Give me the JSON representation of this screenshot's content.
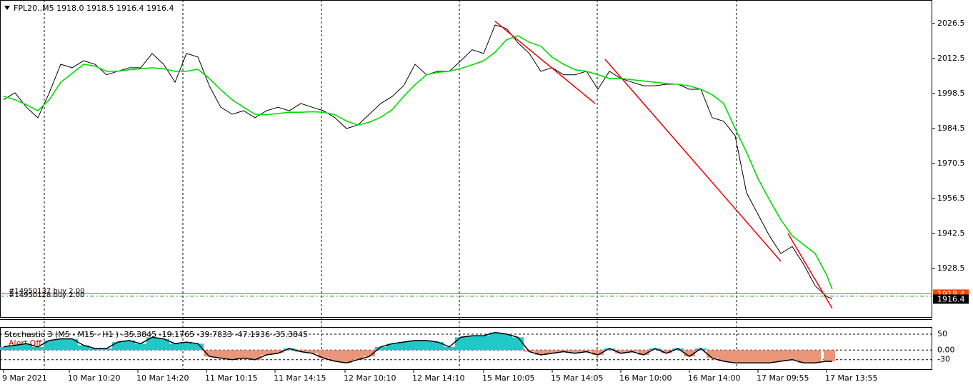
{
  "chart_data": [
    {
      "type": "line",
      "title": "FPL20.,M5  1918.0 1918.5 1916.4 1916.4",
      "x": [
        0,
        8,
        16,
        24,
        32,
        40,
        48,
        56,
        64,
        72,
        80,
        88,
        96,
        104,
        112,
        120,
        128,
        136,
        144,
        152,
        160,
        168,
        176,
        184,
        192,
        200,
        208,
        216,
        224,
        232,
        240,
        248,
        256,
        264,
        272,
        280,
        288,
        296,
        304,
        312,
        320,
        328,
        336,
        344,
        352,
        360,
        368,
        376,
        384,
        392,
        400,
        408,
        416,
        424,
        432,
        440,
        448,
        456,
        464,
        472,
        480,
        488,
        496,
        504,
        512,
        520,
        528,
        536,
        544,
        552,
        560,
        568,
        576,
        580
      ],
      "series": [
        {
          "color": "#000000",
          "values": [
            1996,
            1998.8,
            1993,
            1988.8,
            1998.8,
            2010.2,
            2008.8,
            2011.6,
            2010.2,
            2006,
            2007.4,
            2008.8,
            2008.8,
            2014.5,
            2010.2,
            2003,
            2014.5,
            2013.1,
            2001.6,
            1993,
            1990.2,
            1991.6,
            1988.8,
            1991.6,
            1993,
            1991.6,
            1994.5,
            1993,
            1991.6,
            1988.8,
            1984.5,
            1985.9,
            1990.2,
            1994.5,
            1997.3,
            2001.6,
            2010.2,
            2006,
            2007.4,
            2007.4,
            2011.6,
            2016,
            2014.5,
            2025.9,
            2024.5,
            2018.8,
            2014.5,
            2007.4,
            2008.8,
            2006,
            2006,
            2007.4,
            2000.2,
            2007.4,
            2004.5,
            2003,
            2001.6,
            2001.6,
            2002.2,
            2002.2,
            2000.2,
            2000.2,
            1988.8,
            1987.4,
            1981.6,
            1958.8,
            1950.2,
            1941.6,
            1934.5,
            1937.3,
            1930.1,
            1921.6,
            1917.3,
            1916.4
          ]
        },
        {
          "color": "#00dd00",
          "values": [
            1997.4,
            1996,
            1994,
            1991.6,
            1996,
            2003,
            2006.5,
            2010.2,
            2009.5,
            2007.4,
            2007.4,
            2008,
            2008.4,
            2008.8,
            2008.4,
            2007.4,
            2007.4,
            2008.2,
            2004.5,
            2000,
            1996,
            1993,
            1990.2,
            1990,
            1990.5,
            1991,
            1991,
            1991.2,
            1991,
            1990,
            1987.5,
            1985.9,
            1987,
            1989,
            1992,
            1997.3,
            2002,
            2006,
            2007,
            2007.4,
            2008.5,
            2010,
            2011.6,
            2015,
            2020,
            2021.6,
            2019,
            2017.4,
            2013,
            2010.2,
            2008,
            2007.4,
            2006,
            2004.5,
            2004.5,
            2004,
            2003.5,
            2003,
            2002.5,
            2002.2,
            2001.5,
            2000.2,
            1998,
            1994.5,
            1984.5,
            1975,
            1964.5,
            1956,
            1948,
            1941.6,
            1938,
            1934.5,
            1926,
            1920.2
          ]
        }
      ],
      "trendlines": [
        {
          "x": [
            344,
            414
          ],
          "y": [
            2027.4,
            1994.5
          ]
        },
        {
          "x": [
            421,
            544
          ],
          "y": [
            2012.2,
            1931.4
          ]
        },
        {
          "x": [
            549,
            580
          ],
          "y": [
            1942.5,
            1912.5
          ]
        }
      ],
      "trendline_color": "#ee0000",
      "order_lines": [
        {
          "label": "#14950137 buy 2.00",
          "value": 1918.4,
          "color": "#ff4500"
        },
        {
          "label": "#14950128 buy 2.00",
          "value": 1917.4,
          "color": "#2e8b57"
        }
      ],
      "price_labels": [
        {
          "value": 1918.4,
          "color": "#ff4500"
        },
        {
          "value": 1916.4,
          "color": "#000000"
        }
      ],
      "xlim": [
        -2.5,
        650
      ],
      "xticks": [
        {
          "value": 0,
          "label": "9 Mar 2021"
        },
        {
          "value": 46,
          "label": "10 Mar 10:20"
        },
        {
          "value": 94,
          "label": "10 Mar 14:20"
        },
        {
          "value": 142,
          "label": "11 Mar 10:15"
        },
        {
          "value": 190,
          "label": "11 Mar 14:15"
        },
        {
          "value": 239,
          "label": "12 Mar 10:10"
        },
        {
          "value": 287,
          "label": "12 Mar 14:10"
        },
        {
          "value": 336,
          "label": "15 Mar 10:05"
        },
        {
          "value": 384,
          "label": "15 Mar 14:05"
        },
        {
          "value": 432,
          "label": "16 Mar 10:00"
        },
        {
          "value": 480,
          "label": "16 Mar 14:00"
        },
        {
          "value": 528,
          "label": "17 Mar 09:55"
        },
        {
          "value": 576,
          "label": "17 Mar 13:55"
        }
      ],
      "ylim": [
        1908.8,
        2035.9
      ],
      "yticks": [
        2026.5,
        2012.5,
        1998.5,
        1984.5,
        1970.5,
        1956.5,
        1942.5,
        1928.5
      ]
    },
    {
      "type": "bar",
      "title": "Stochastic 3 (M5 - M15 - H1 ) -35.3845 -19.1765 -39.7833 -47.1936 -35.3845",
      "annotation": "Alert Off",
      "pos_color": "#20c8c8",
      "neg_color": "#e9967a",
      "line_color": "#000000",
      "series": [
        {
          "values": [
            10,
            15,
            20,
            10,
            30,
            35,
            35,
            15,
            5,
            5,
            25,
            30,
            20,
            40,
            35,
            20,
            25,
            20,
            -20,
            -25,
            -30,
            -25,
            -30,
            -15,
            -10,
            5,
            -5,
            -10,
            -25,
            -35,
            -40,
            -30,
            -20,
            10,
            20,
            25,
            30,
            30,
            25,
            10,
            40,
            45,
            45,
            55,
            50,
            40,
            -5,
            -15,
            -10,
            -5,
            -10,
            -5,
            -15,
            5,
            -10,
            -5,
            -15,
            5,
            -10,
            5,
            -20,
            5,
            -25,
            -35,
            -40,
            -40,
            -40,
            -40,
            -35,
            -30,
            -40,
            -40,
            -35,
            -35.3845
          ]
        }
      ],
      "ylim": [
        -62,
        70
      ],
      "yticks": [
        50,
        {
          "value": 0,
          "label": "0.00"
        },
        -30
      ],
      "grid": true
    }
  ]
}
